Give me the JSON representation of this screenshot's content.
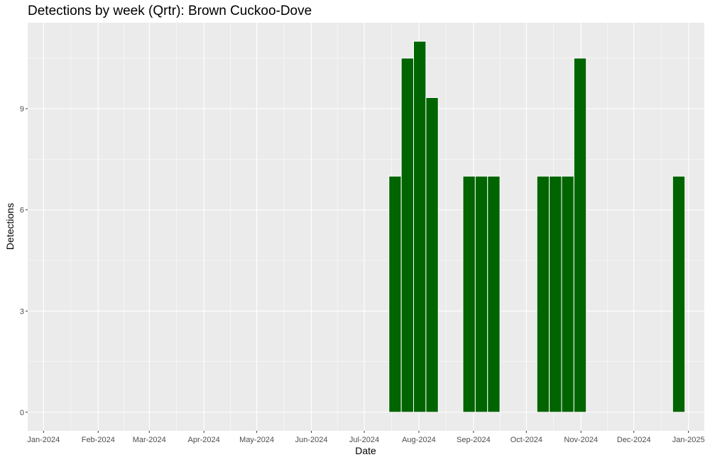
{
  "chart_data": {
    "type": "bar",
    "title": "Detections by week (Qrtr): Brown Cuckoo-Dove",
    "xlabel": "Date",
    "ylabel": "Detections",
    "x_tick_labels": [
      "Jan-2024",
      "Feb-2024",
      "Mar-2024",
      "Apr-2024",
      "May-2024",
      "Jun-2024",
      "Jul-2024",
      "Aug-2024",
      "Sep-2024",
      "Oct-2024",
      "Nov-2024",
      "Dec-2024",
      "Jan-2025"
    ],
    "y_ticks": [
      0,
      3,
      6,
      9
    ],
    "xlim": [
      "2023-12-23",
      "2025-01-10"
    ],
    "ylim": [
      -0.55,
      11.55
    ],
    "grid": true,
    "bar_color": "#006400",
    "panel_background": "#EBEBEB",
    "weeks": [
      "2024-07-15",
      "2024-07-22",
      "2024-07-29",
      "2024-08-05",
      "2024-08-26",
      "2024-09-02",
      "2024-09-09",
      "2024-10-07",
      "2024-10-14",
      "2024-10-21",
      "2024-10-28",
      "2024-12-23"
    ],
    "values": [
      7.0,
      10.5,
      11.0,
      9.33,
      7.0,
      7.0,
      7.0,
      7.0,
      7.0,
      7.0,
      10.5,
      7.0
    ]
  }
}
